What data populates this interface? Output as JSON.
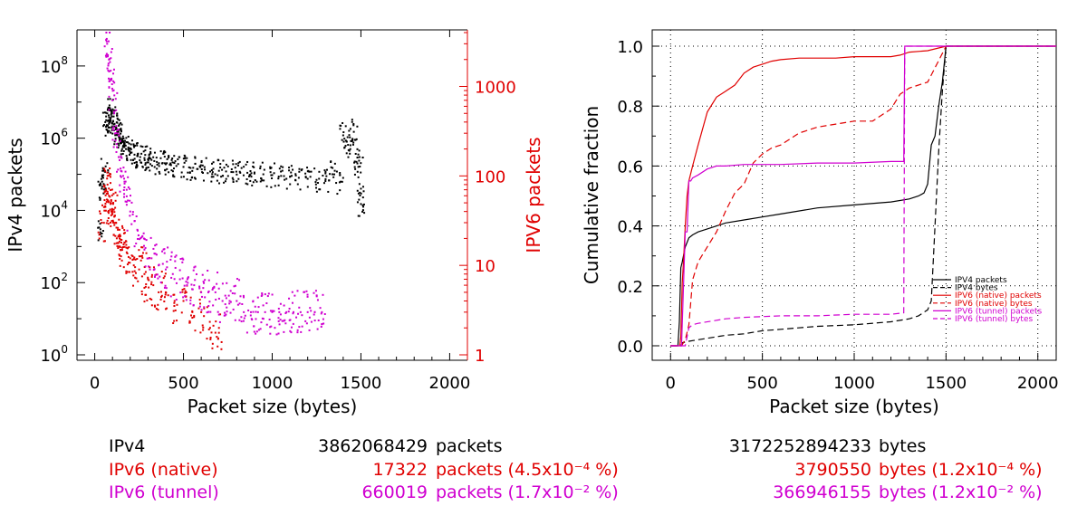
{
  "colors": {
    "ipv4": "#000000",
    "ipv6_native": "#e00000",
    "ipv6_tunnel": "#d000d0",
    "grid": "#000000"
  },
  "chart_data": [
    {
      "type": "scatter",
      "xlabel": "Packet size (bytes)",
      "ylabel": "IPv4 packets",
      "ylabel_right": "IPV6 packets",
      "xlim": [
        -100,
        2100
      ],
      "ylim": [
        1,
        1000000000.0
      ],
      "ylim_right": [
        1,
        4000
      ],
      "y_scale": "log",
      "y_scale_right": "log",
      "grid": false,
      "x_ticks": [
        "0",
        "500",
        "1000",
        "1500",
        "2000"
      ],
      "y_ticks": [
        {
          "base": "10",
          "exp": "0"
        },
        {
          "base": "10",
          "exp": "2"
        },
        {
          "base": "10",
          "exp": "4"
        },
        {
          "base": "10",
          "exp": "6"
        },
        {
          "base": "10",
          "exp": "8"
        }
      ],
      "y_ticks_right": [
        "1",
        "10",
        "100",
        "1000"
      ],
      "series": [
        {
          "axis": "left",
          "color": "#000000",
          "x": [
            32,
            40,
            48,
            56,
            64,
            72,
            80,
            88,
            96,
            104,
            112,
            120,
            128,
            136,
            144,
            152,
            160,
            176,
            192,
            208,
            224,
            240,
            256,
            280,
            300,
            320,
            350,
            380,
            400,
            430,
            460,
            500,
            540,
            580,
            620,
            660,
            700,
            740,
            780,
            820,
            860,
            900,
            950,
            1000,
            1050,
            1100,
            1150,
            1200,
            1250,
            1300,
            1340,
            1380,
            1400,
            1420,
            1440,
            1460,
            1480,
            1492,
            1500,
            1500
          ],
          "y": [
            3000.0,
            40000.0,
            80000.0,
            120000.0,
            4000000.0,
            3000000.0,
            2500000.0,
            6000000.0,
            4000000.0,
            3000000.0,
            2500000.0,
            2000000.0,
            1500000.0,
            1200000.0,
            1000000.0,
            800000.0,
            600000.0,
            500000.0,
            450000.0,
            400000.0,
            350000.0,
            320000.0,
            300000.0,
            280000.0,
            260000.0,
            250000.0,
            220000.0,
            200000.0,
            190000.0,
            180000.0,
            170000.0,
            160000.0,
            150000.0,
            140000.0,
            135000.0,
            130000.0,
            125000.0,
            120000.0,
            115000.0,
            110000.0,
            110000.0,
            105000.0,
            100000.0,
            95000.0,
            90000.0,
            85000.0,
            80000.0,
            75000.0,
            70000.0,
            65000.0,
            150000.0,
            60000.0,
            1200000.0,
            800000.0,
            500000.0,
            1500000.0,
            200000.0,
            300000.0,
            40000.0,
            15000.0
          ]
        },
        {
          "axis": "right",
          "color": "#e00000",
          "x": [
            40,
            60,
            64,
            72,
            80,
            90,
            100,
            110,
            120,
            130,
            140,
            150,
            160,
            180,
            200,
            220,
            250,
            280,
            300,
            330,
            360,
            400,
            450,
            500,
            550,
            600,
            650,
            700
          ],
          "y": [
            30,
            45,
            70,
            80,
            60,
            50,
            40,
            35,
            30,
            25,
            20,
            18,
            16,
            14,
            12,
            10,
            9,
            8,
            7,
            6,
            5,
            5,
            4,
            4,
            3,
            3,
            2,
            2
          ]
        },
        {
          "axis": "right",
          "color": "#d000d0",
          "x": [
            70,
            80,
            90,
            100,
            110,
            120,
            140,
            160,
            180,
            200,
            240,
            280,
            320,
            360,
            400,
            440,
            480,
            520,
            560,
            600,
            640,
            680,
            720,
            760,
            800,
            840,
            880,
            920,
            960,
            1000,
            1040,
            1080,
            1120,
            1160,
            1200,
            1240,
            1280
          ],
          "y": [
            3000,
            2000,
            1500,
            700,
            500,
            300,
            150,
            100,
            70,
            40,
            25,
            15,
            12,
            10,
            9,
            8,
            7,
            6,
            6,
            5,
            5,
            5,
            4,
            4,
            4,
            3,
            3,
            3,
            3,
            3,
            3,
            3,
            3,
            3,
            3,
            3,
            3
          ]
        }
      ]
    },
    {
      "type": "line",
      "xlabel": "Packet size (bytes)",
      "ylabel": "Cumulative fraction",
      "xlim": [
        -100,
        2100
      ],
      "ylim": [
        -0.05,
        1.05
      ],
      "grid": true,
      "legend_position": "bottom-right",
      "x_ticks": [
        "0",
        "500",
        "1000",
        "1500",
        "2000"
      ],
      "y_ticks": [
        "0.0",
        "0.2",
        "0.4",
        "0.6",
        "0.8",
        "1.0"
      ],
      "series": [
        {
          "name": "IPV4 packets",
          "color": "#000000",
          "dash": "solid",
          "x": [
            0,
            40,
            48,
            56,
            64,
            70,
            80,
            100,
            120,
            150,
            200,
            300,
            400,
            500,
            600,
            800,
            1000,
            1200,
            1300,
            1350,
            1380,
            1400,
            1420,
            1440,
            1460,
            1480,
            1500,
            2100
          ],
          "y": [
            0,
            0,
            0.08,
            0.26,
            0.28,
            0.3,
            0.33,
            0.36,
            0.37,
            0.38,
            0.39,
            0.41,
            0.42,
            0.43,
            0.44,
            0.46,
            0.47,
            0.48,
            0.49,
            0.5,
            0.51,
            0.54,
            0.67,
            0.7,
            0.8,
            0.88,
            1.0,
            1.0
          ]
        },
        {
          "name": "IPV4 bytes",
          "color": "#000000",
          "dash": "dashed",
          "x": [
            0,
            56,
            64,
            100,
            200,
            300,
            400,
            500,
            600,
            800,
            1000,
            1200,
            1300,
            1350,
            1400,
            1420,
            1440,
            1460,
            1480,
            1500,
            2100
          ],
          "y": [
            0,
            0,
            0.01,
            0.015,
            0.025,
            0.035,
            0.04,
            0.05,
            0.055,
            0.065,
            0.07,
            0.08,
            0.09,
            0.1,
            0.12,
            0.15,
            0.4,
            0.65,
            0.85,
            1.0,
            1.0
          ]
        },
        {
          "name": "IPV6 (native) packets",
          "color": "#e00000",
          "dash": "solid",
          "x": [
            0,
            50,
            56,
            64,
            72,
            80,
            90,
            100,
            120,
            150,
            200,
            250,
            300,
            350,
            400,
            450,
            500,
            550,
            600,
            700,
            800,
            900,
            1000,
            1100,
            1200,
            1250,
            1300,
            1400,
            1500,
            2100
          ],
          "y": [
            0,
            0,
            0.03,
            0.21,
            0.3,
            0.4,
            0.5,
            0.55,
            0.6,
            0.67,
            0.78,
            0.83,
            0.85,
            0.87,
            0.91,
            0.93,
            0.94,
            0.95,
            0.955,
            0.96,
            0.96,
            0.96,
            0.965,
            0.965,
            0.965,
            0.97,
            0.98,
            0.985,
            1.0,
            1.0
          ]
        },
        {
          "name": "IPV6 (native) bytes",
          "color": "#e00000",
          "dash": "dashed",
          "x": [
            0,
            60,
            80,
            100,
            120,
            150,
            200,
            250,
            300,
            350,
            400,
            450,
            500,
            550,
            600,
            700,
            800,
            900,
            1000,
            1100,
            1150,
            1200,
            1250,
            1300,
            1400,
            1500,
            2100
          ],
          "y": [
            0,
            0,
            0.02,
            0.07,
            0.22,
            0.28,
            0.33,
            0.38,
            0.45,
            0.51,
            0.54,
            0.61,
            0.64,
            0.66,
            0.67,
            0.71,
            0.73,
            0.74,
            0.75,
            0.75,
            0.77,
            0.79,
            0.84,
            0.86,
            0.88,
            1.0,
            1.0
          ]
        },
        {
          "name": "IPV6 (tunnel) packets",
          "color": "#d000d0",
          "dash": "solid",
          "x": [
            0,
            60,
            80,
            90,
            100,
            110,
            120,
            150,
            200,
            250,
            300,
            400,
            600,
            800,
            1000,
            1200,
            1270,
            1275,
            1500,
            2100
          ],
          "y": [
            0,
            0,
            0.38,
            0.38,
            0.55,
            0.55,
            0.56,
            0.57,
            0.59,
            0.6,
            0.6,
            0.605,
            0.605,
            0.61,
            0.61,
            0.615,
            0.615,
            1.0,
            1.0,
            1.0
          ]
        },
        {
          "name": "IPV6 (tunnel) bytes",
          "color": "#d000d0",
          "dash": "dashed",
          "x": [
            0,
            80,
            90,
            100,
            120,
            150,
            300,
            400,
            600,
            800,
            1000,
            1200,
            1270,
            1275,
            1500,
            2100
          ],
          "y": [
            0,
            0,
            0.03,
            0.06,
            0.07,
            0.075,
            0.09,
            0.095,
            0.1,
            0.1,
            0.105,
            0.105,
            0.11,
            1.0,
            1.0,
            1.0
          ]
        }
      ]
    }
  ],
  "summary": [
    {
      "key": "ipv4",
      "label": "IPv4",
      "packets": "3862068429",
      "packets_text": "packets",
      "bytes": "3172252894233",
      "bytes_text": "bytes"
    },
    {
      "key": "ipv6_native",
      "label": "IPv6 (native)",
      "packets": "17322",
      "packets_text": "packets (4.5x10⁻⁴ %)",
      "bytes": "3790550",
      "bytes_text": "bytes (1.2x10⁻⁴ %)"
    },
    {
      "key": "ipv6_tunnel",
      "label": "IPv6 (tunnel)",
      "packets": "660019",
      "packets_text": "packets (1.7x10⁻² %)",
      "bytes": "366946155",
      "bytes_text": "bytes (1.2x10⁻² %)"
    }
  ]
}
